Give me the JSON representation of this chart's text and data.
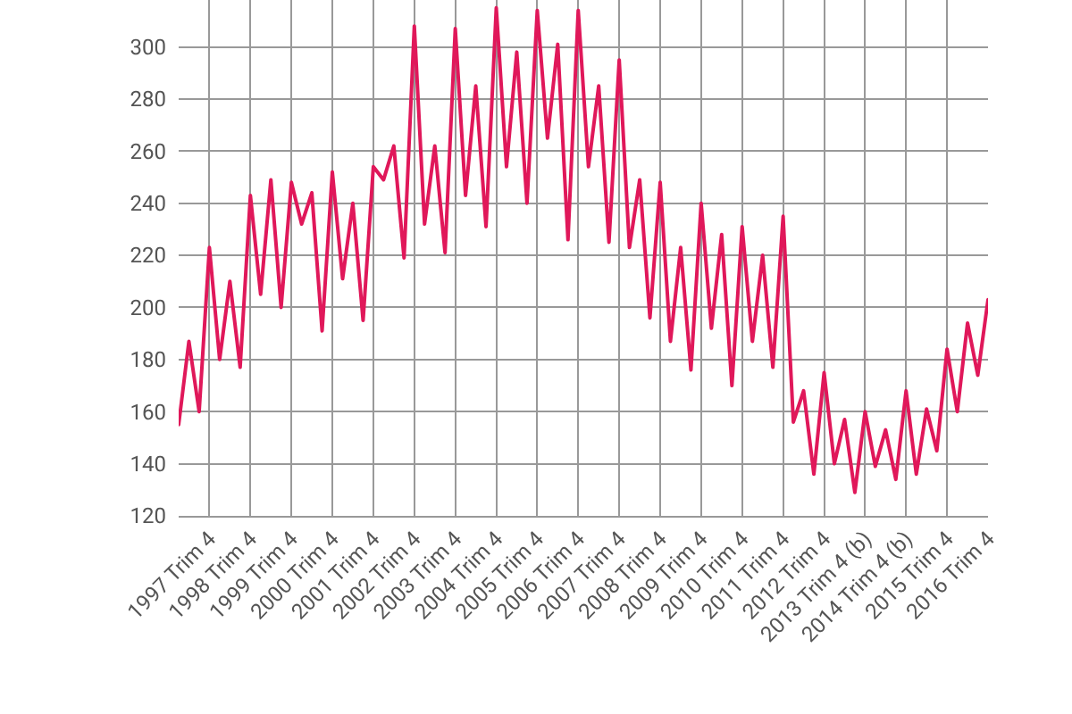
{
  "chart_data": {
    "type": "line",
    "categories": [
      null,
      null,
      null,
      "1997 Trim 4",
      null,
      null,
      null,
      "1998 Trim 4",
      null,
      null,
      null,
      "1999 Trim 4",
      null,
      null,
      null,
      "2000 Trim 4",
      null,
      null,
      null,
      "2001 Trim 4",
      null,
      null,
      null,
      "2002 Trim 4",
      null,
      null,
      null,
      "2003 Trim 4",
      null,
      null,
      null,
      "2004 Trim 4",
      null,
      null,
      null,
      "2005 Trim 4",
      null,
      null,
      null,
      "2006 Trim 4",
      null,
      null,
      null,
      "2007 Trim 4",
      null,
      null,
      null,
      "2008 Trim 4",
      null,
      null,
      null,
      "2009 Trim 4",
      null,
      null,
      null,
      "2010 Trim 4",
      null,
      null,
      null,
      "2011 Trim 4",
      null,
      null,
      null,
      "2012 Trim 4",
      null,
      null,
      null,
      "2013 Trim 4 (b)",
      null,
      null,
      null,
      "2014 Trim 4 (b)",
      null,
      null,
      null,
      "2015 Trim 4",
      null,
      null,
      null,
      "2016 Trim 4"
    ],
    "series": [
      {
        "color": "#e0185a",
        "values": [
          155,
          187,
          160,
          223,
          180,
          210,
          177,
          243,
          205,
          249,
          200,
          248,
          232,
          244,
          191,
          252,
          211,
          240,
          195,
          254,
          249,
          262,
          219,
          308,
          232,
          262,
          221,
          307,
          243,
          285,
          231,
          315,
          254,
          298,
          240,
          314,
          265,
          301,
          226,
          314,
          254,
          285,
          225,
          295,
          223,
          249,
          196,
          248,
          187,
          223,
          176,
          240,
          192,
          228,
          170,
          231,
          187,
          220,
          177,
          235,
          156,
          168,
          136,
          175,
          140,
          157,
          129,
          160,
          139,
          153,
          134,
          168,
          136,
          161,
          145,
          184,
          160,
          194,
          174,
          203
        ]
      }
    ],
    "ylim": [
      120,
      318
    ],
    "yticks": [
      120,
      140,
      160,
      180,
      200,
      220,
      240,
      260,
      280,
      300
    ],
    "grid": true,
    "marker": "none",
    "line_style": "solid"
  }
}
